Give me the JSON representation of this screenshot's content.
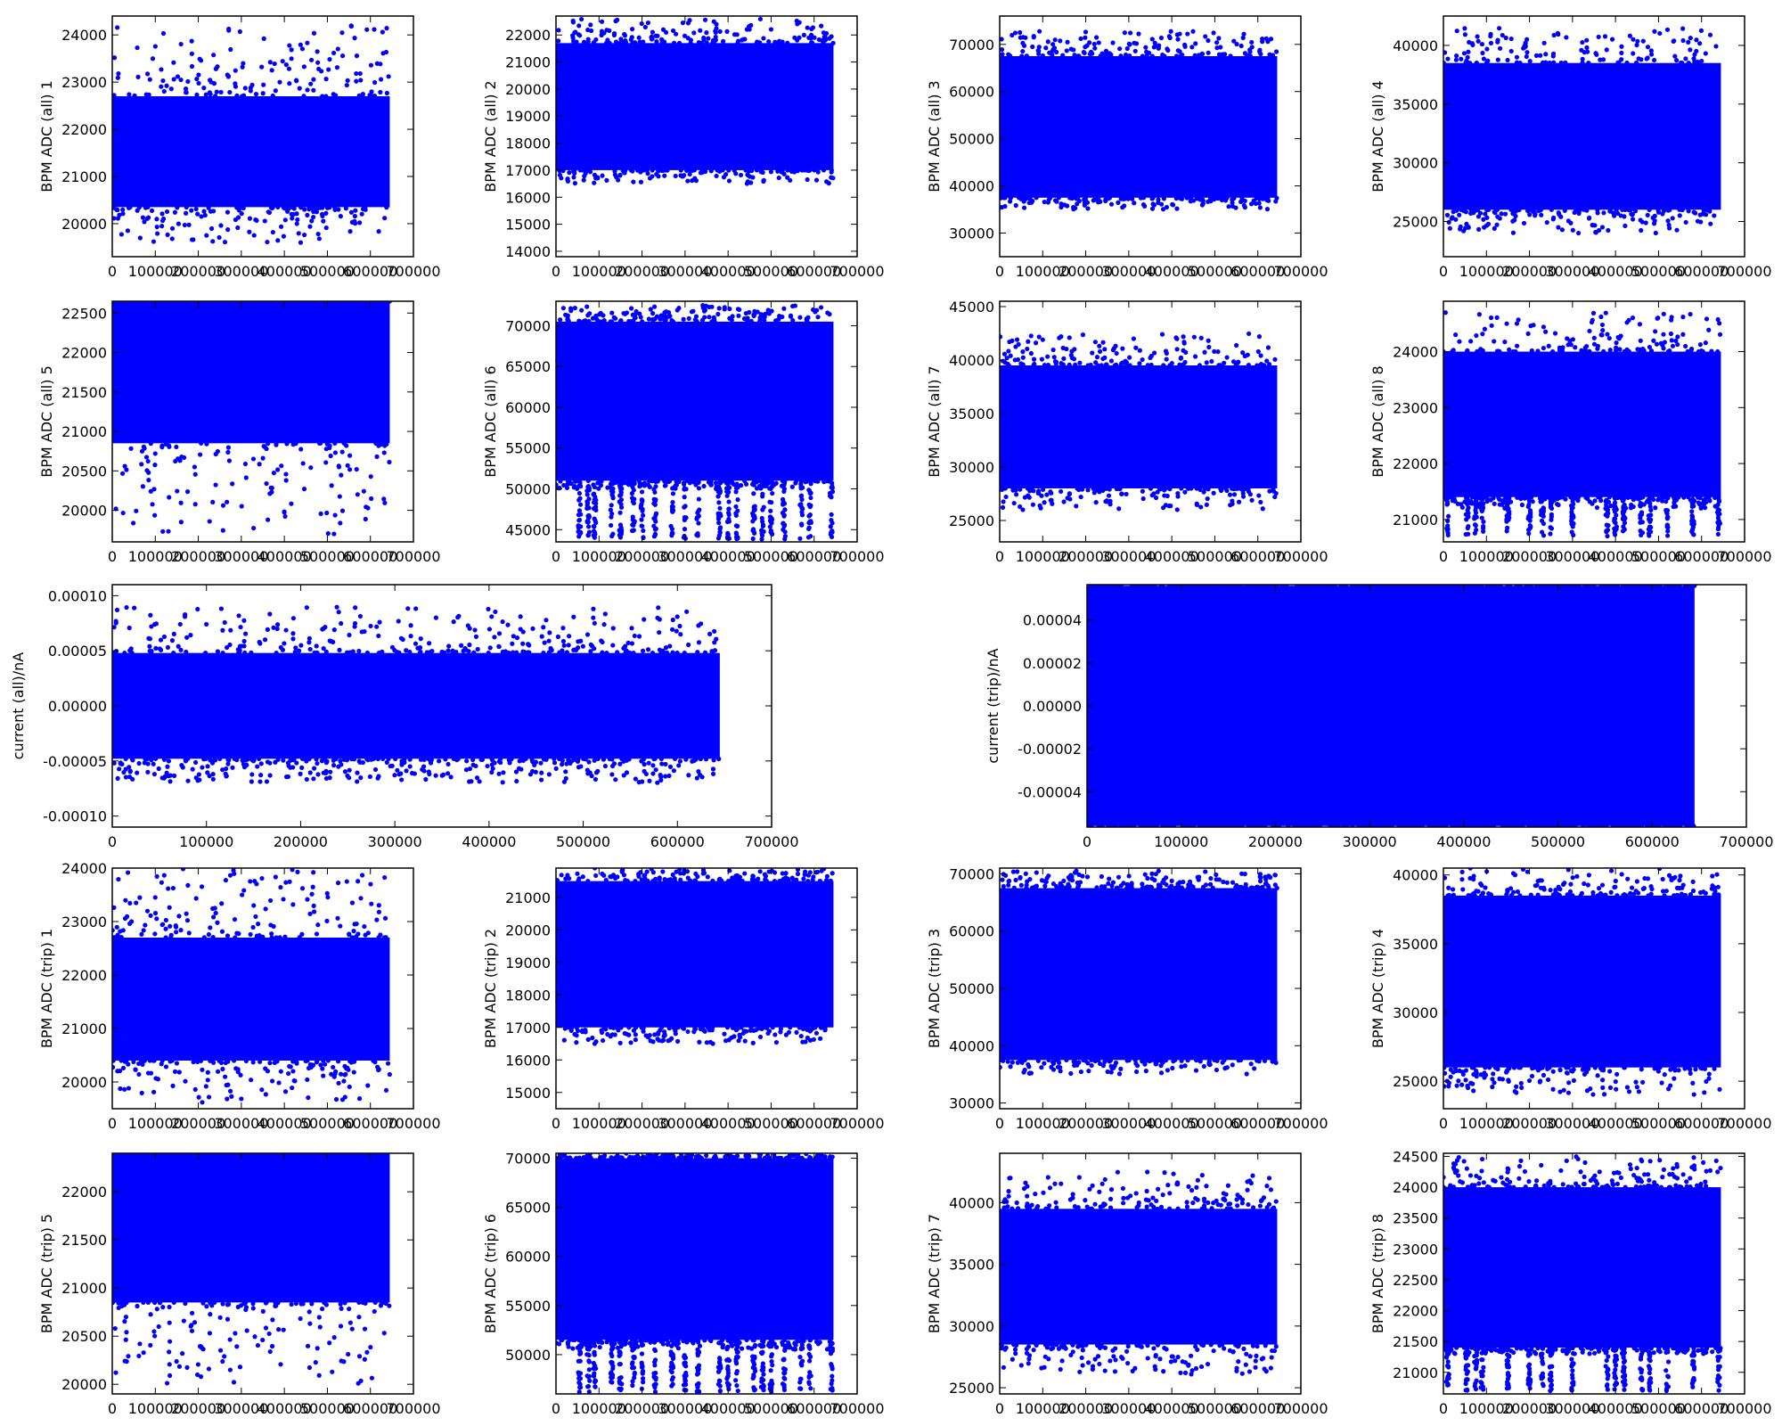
{
  "marker_color": "#0000ff",
  "chart_data": [
    {
      "type": "scatter",
      "ylabel": "BPM ADC (all) 1",
      "xlim": [
        0,
        700000
      ],
      "ylim": [
        19300,
        24400
      ],
      "xticks": [
        0,
        100000,
        200000,
        300000,
        400000,
        500000,
        600000,
        700000
      ],
      "yticks": [
        20000,
        21000,
        22000,
        23000,
        24000
      ],
      "band": [
        20350,
        22700
      ],
      "spread": [
        19600,
        24200
      ],
      "x_extent": [
        0,
        645000
      ],
      "drops": null
    },
    {
      "type": "scatter",
      "ylabel": "BPM ADC (all) 2",
      "xlim": [
        0,
        700000
      ],
      "ylim": [
        13800,
        22700
      ],
      "xticks": [
        0,
        100000,
        200000,
        300000,
        400000,
        500000,
        600000,
        700000
      ],
      "yticks": [
        14000,
        15000,
        16000,
        17000,
        18000,
        19000,
        20000,
        21000,
        22000
      ],
      "band": [
        17000,
        21700
      ],
      "spread": [
        16500,
        22600
      ],
      "x_extent": [
        0,
        645000
      ],
      "drops": null
    },
    {
      "type": "scatter",
      "ylabel": "BPM ADC (all) 3",
      "xlim": [
        0,
        700000
      ],
      "ylim": [
        25000,
        76000
      ],
      "xticks": [
        0,
        100000,
        200000,
        300000,
        400000,
        500000,
        600000,
        700000
      ],
      "yticks": [
        30000,
        40000,
        50000,
        60000,
        70000
      ],
      "band": [
        37500,
        67500
      ],
      "spread": [
        35000,
        73000
      ],
      "x_extent": [
        0,
        645000
      ],
      "drops": null
    },
    {
      "type": "scatter",
      "ylabel": "BPM ADC (all) 4",
      "xlim": [
        0,
        700000
      ],
      "ylim": [
        22000,
        42500
      ],
      "xticks": [
        0,
        100000,
        200000,
        300000,
        400000,
        500000,
        600000,
        700000
      ],
      "yticks": [
        25000,
        30000,
        35000,
        40000
      ],
      "band": [
        26000,
        38500
      ],
      "spread": [
        24000,
        41500
      ],
      "x_extent": [
        0,
        645000
      ],
      "drops": null
    },
    {
      "type": "scatter",
      "ylabel": "BPM ADC (all) 5",
      "xlim": [
        0,
        700000
      ],
      "ylim": [
        19600,
        22650
      ],
      "xticks": [
        0,
        100000,
        200000,
        300000,
        400000,
        500000,
        600000,
        700000
      ],
      "yticks": [
        20000,
        20500,
        21000,
        21500,
        22000,
        22500
      ],
      "band": [
        20850,
        22650
      ],
      "spread": [
        19700,
        22650
      ],
      "x_extent": [
        0,
        645000
      ],
      "drops": null
    },
    {
      "type": "scatter",
      "ylabel": "BPM ADC (all) 6",
      "xlim": [
        0,
        700000
      ],
      "ylim": [
        43500,
        73000
      ],
      "xticks": [
        0,
        100000,
        200000,
        300000,
        400000,
        500000,
        600000,
        700000
      ],
      "yticks": [
        45000,
        50000,
        55000,
        60000,
        65000,
        70000
      ],
      "band": [
        51000,
        70500
      ],
      "spread": [
        50000,
        72500
      ],
      "x_extent": [
        0,
        645000
      ],
      "drops": {
        "low": 43800,
        "high": 51000,
        "x": [
          55000,
          75000,
          90000,
          130000,
          150000,
          180000,
          200000,
          230000,
          270000,
          300000,
          330000,
          380000,
          400000,
          420000,
          460000,
          480000,
          500000,
          530000,
          570000,
          590000,
          640000
        ]
      }
    },
    {
      "type": "scatter",
      "ylabel": "BPM ADC (all) 7",
      "xlim": [
        0,
        700000
      ],
      "ylim": [
        23000,
        45500
      ],
      "xticks": [
        0,
        100000,
        200000,
        300000,
        400000,
        500000,
        600000,
        700000
      ],
      "yticks": [
        25000,
        30000,
        35000,
        40000,
        45000
      ],
      "band": [
        28000,
        39500
      ],
      "spread": [
        26000,
        42500
      ],
      "x_extent": [
        0,
        645000
      ],
      "drops": null
    },
    {
      "type": "scatter",
      "ylabel": "BPM ADC (all) 8",
      "xlim": [
        0,
        700000
      ],
      "ylim": [
        20600,
        24900
      ],
      "xticks": [
        0,
        100000,
        200000,
        300000,
        400000,
        500000,
        600000,
        700000
      ],
      "yticks": [
        21000,
        22000,
        23000,
        24000
      ],
      "band": [
        21400,
        24000
      ],
      "spread": [
        21200,
        24700
      ],
      "x_extent": [
        0,
        645000
      ],
      "drops": {
        "low": 20700,
        "high": 21400,
        "x": [
          10000,
          55000,
          75000,
          90000,
          150000,
          200000,
          230000,
          250000,
          300000,
          380000,
          400000,
          420000,
          460000,
          480000,
          520000,
          580000,
          640000
        ]
      }
    },
    {
      "type": "scatter",
      "ylabel": "current (all)/nA",
      "xlim": [
        0,
        700000
      ],
      "ylim": [
        -0.00011,
        0.00011
      ],
      "xticks": [
        0,
        100000,
        200000,
        300000,
        400000,
        500000,
        600000,
        700000
      ],
      "yticks": [
        -0.0001,
        -5e-05,
        0,
        5e-05,
        0.0001
      ],
      "band": [
        -4.8e-05,
        4.8e-05
      ],
      "spread": [
        -7e-05,
        9e-05
      ],
      "x_extent": [
        0,
        645000
      ],
      "drops": null
    },
    {
      "type": "scatter",
      "ylabel": "current (trip)/nA",
      "xlim": [
        0,
        700000
      ],
      "ylim": [
        -5.65e-05,
        5.65e-05
      ],
      "xticks": [
        0,
        100000,
        200000,
        300000,
        400000,
        500000,
        600000,
        700000
      ],
      "yticks": [
        -4e-05,
        -2e-05,
        0,
        2e-05,
        4e-05
      ],
      "band": [
        -5.6e-05,
        5.6e-05
      ],
      "spread": [
        -5.6e-05,
        5.6e-05
      ],
      "x_extent": [
        0,
        645000
      ],
      "drops": null
    },
    {
      "type": "scatter",
      "ylabel": "BPM ADC (trip) 1",
      "xlim": [
        0,
        700000
      ],
      "ylim": [
        19500,
        24000
      ],
      "xticks": [
        0,
        100000,
        200000,
        300000,
        400000,
        500000,
        600000,
        700000
      ],
      "yticks": [
        20000,
        21000,
        22000,
        23000,
        24000
      ],
      "band": [
        20400,
        22700
      ],
      "spread": [
        19600,
        24000
      ],
      "x_extent": [
        0,
        645000
      ],
      "drops": null
    },
    {
      "type": "scatter",
      "ylabel": "BPM ADC (trip) 2",
      "xlim": [
        0,
        700000
      ],
      "ylim": [
        14500,
        21900
      ],
      "xticks": [
        0,
        100000,
        200000,
        300000,
        400000,
        500000,
        600000,
        700000
      ],
      "yticks": [
        15000,
        16000,
        17000,
        18000,
        19000,
        20000,
        21000
      ],
      "band": [
        17000,
        21500
      ],
      "spread": [
        16500,
        21900
      ],
      "x_extent": [
        0,
        645000
      ],
      "drops": null
    },
    {
      "type": "scatter",
      "ylabel": "BPM ADC (trip) 3",
      "xlim": [
        0,
        700000
      ],
      "ylim": [
        29000,
        71000
      ],
      "xticks": [
        0,
        100000,
        200000,
        300000,
        400000,
        500000,
        600000,
        700000
      ],
      "yticks": [
        30000,
        40000,
        50000,
        60000,
        70000
      ],
      "band": [
        37500,
        67500
      ],
      "spread": [
        35000,
        70500
      ],
      "x_extent": [
        0,
        645000
      ],
      "drops": null
    },
    {
      "type": "scatter",
      "ylabel": "BPM ADC (trip) 4",
      "xlim": [
        0,
        700000
      ],
      "ylim": [
        23000,
        40500
      ],
      "xticks": [
        0,
        100000,
        200000,
        300000,
        400000,
        500000,
        600000,
        700000
      ],
      "yticks": [
        25000,
        30000,
        35000,
        40000
      ],
      "band": [
        26000,
        38500
      ],
      "spread": [
        24000,
        40500
      ],
      "x_extent": [
        0,
        645000
      ],
      "drops": null
    },
    {
      "type": "scatter",
      "ylabel": "BPM ADC (trip) 5",
      "xlim": [
        0,
        700000
      ],
      "ylim": [
        19900,
        22400
      ],
      "xticks": [
        0,
        100000,
        200000,
        300000,
        400000,
        500000,
        600000,
        700000
      ],
      "yticks": [
        20000,
        20500,
        21000,
        21500,
        22000
      ],
      "band": [
        20850,
        22400
      ],
      "spread": [
        19950,
        22400
      ],
      "x_extent": [
        0,
        645000
      ],
      "drops": null
    },
    {
      "type": "scatter",
      "ylabel": "BPM ADC (trip) 6",
      "xlim": [
        0,
        700000
      ],
      "ylim": [
        46000,
        70500
      ],
      "xticks": [
        0,
        100000,
        200000,
        300000,
        400000,
        500000,
        600000,
        700000
      ],
      "yticks": [
        50000,
        55000,
        60000,
        65000,
        70000
      ],
      "band": [
        51500,
        70000
      ],
      "spread": [
        50500,
        70500
      ],
      "x_extent": [
        0,
        645000
      ],
      "drops": {
        "low": 46200,
        "high": 51500,
        "x": [
          55000,
          75000,
          90000,
          130000,
          150000,
          180000,
          200000,
          230000,
          270000,
          300000,
          330000,
          380000,
          400000,
          420000,
          460000,
          480000,
          500000,
          530000,
          570000,
          590000,
          640000
        ]
      }
    },
    {
      "type": "scatter",
      "ylabel": "BPM ADC (trip) 7",
      "xlim": [
        0,
        700000
      ],
      "ylim": [
        24500,
        44000
      ],
      "xticks": [
        0,
        100000,
        200000,
        300000,
        400000,
        500000,
        600000,
        700000
      ],
      "yticks": [
        25000,
        30000,
        35000,
        40000
      ],
      "band": [
        28500,
        39500
      ],
      "spread": [
        26000,
        42500
      ],
      "x_extent": [
        0,
        645000
      ],
      "drops": null
    },
    {
      "type": "scatter",
      "ylabel": "BPM ADC (trip) 8",
      "xlim": [
        0,
        700000
      ],
      "ylim": [
        20650,
        24550
      ],
      "xticks": [
        0,
        100000,
        200000,
        300000,
        400000,
        500000,
        600000,
        700000
      ],
      "yticks": [
        21000,
        21500,
        22000,
        22500,
        23000,
        23500,
        24000,
        24500
      ],
      "band": [
        21400,
        24000
      ],
      "spread": [
        21300,
        24500
      ],
      "x_extent": [
        0,
        645000
      ],
      "drops": {
        "low": 20700,
        "high": 21400,
        "x": [
          10000,
          55000,
          75000,
          90000,
          150000,
          200000,
          230000,
          250000,
          300000,
          380000,
          400000,
          420000,
          460000,
          480000,
          520000,
          580000,
          640000
        ]
      }
    }
  ]
}
